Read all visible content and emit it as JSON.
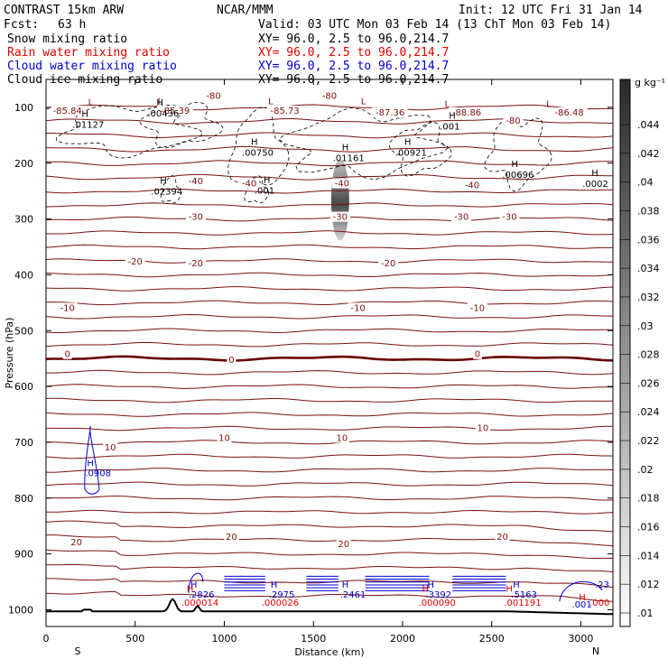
{
  "header": {
    "model": "CONTRAST 15km ARW",
    "org": "NCAR/MMM",
    "init": "Init: 12 UTC Fri 31 Jan 14",
    "fcst_label": "Fcst:",
    "fcst_value": "63 h",
    "valid": "Valid: 03 UTC Mon 03 Feb 14 (13 ChT Mon 03 Feb 14)",
    "fields": [
      {
        "name": "Snow mixing ratio",
        "xy": "XY=  96.0,  2.5 to  96.0,214.7",
        "color": "#000000"
      },
      {
        "name": "Rain water mixing ratio",
        "xy": "XY=  96.0,  2.5 to  96.0,214.7",
        "color": "#e00000"
      },
      {
        "name": "Cloud water mixing ratio",
        "xy": "XY=  96.0,  2.5 to  96.0,214.7",
        "color": "#0000cc"
      },
      {
        "name": "Cloud ice mixing ratio",
        "xy": "XY=  96.0,  2.5 to  96.0,214.7",
        "color": "#000000"
      }
    ]
  },
  "chart_data": {
    "type": "contour cross-section",
    "xlabel": "Distance (km)",
    "ylabel": "Pressure (hPa)",
    "x_ticks": [
      0,
      500,
      1000,
      1500,
      2000,
      2500,
      3000
    ],
    "xlim": [
      0,
      3180
    ],
    "y_ticks": [
      100,
      200,
      300,
      400,
      500,
      600,
      700,
      800,
      900,
      1000
    ],
    "ylim": [
      50,
      1030
    ],
    "x_end_labels": {
      "left": "S",
      "right": "N"
    },
    "colorbar": {
      "unit": "g kg⁻¹",
      "ticks": [
        ".01",
        ".012",
        ".014",
        ".016",
        ".018",
        ".02",
        ".022",
        ".024",
        ".026",
        ".028",
        ".03",
        ".032",
        ".034",
        ".036",
        ".038",
        ".04",
        ".042",
        ".044"
      ]
    },
    "temperature_contours": {
      "color": "#7b1010",
      "zero_color": "#6a0000",
      "labels": [
        {
          "t": "-85.84",
          "x": 120,
          "p": 110
        },
        {
          "t": "-85.39",
          "x": 725,
          "p": 110
        },
        {
          "t": "-85.73",
          "x": 1340,
          "p": 110
        },
        {
          "t": "-87.36",
          "x": 1930,
          "p": 113
        },
        {
          "t": "-88.86",
          "x": 2360,
          "p": 113
        },
        {
          "t": "-86.48",
          "x": 2935,
          "p": 113
        },
        {
          "t": "-80",
          "x": 940,
          "p": 83
        },
        {
          "t": "-80",
          "x": 1590,
          "p": 83
        },
        {
          "t": "-80",
          "x": 2620,
          "p": 128
        },
        {
          "t": "-40",
          "x": 840,
          "p": 236
        },
        {
          "t": "-40",
          "x": 1140,
          "p": 240
        },
        {
          "t": "-40",
          "x": 1660,
          "p": 240
        },
        {
          "t": "-40",
          "x": 2390,
          "p": 243
        },
        {
          "t": "-30",
          "x": 840,
          "p": 300
        },
        {
          "t": "-30",
          "x": 1650,
          "p": 300
        },
        {
          "t": "-30",
          "x": 2330,
          "p": 300
        },
        {
          "t": "-30",
          "x": 2600,
          "p": 300
        },
        {
          "t": "-20",
          "x": 500,
          "p": 380
        },
        {
          "t": "-20",
          "x": 840,
          "p": 383
        },
        {
          "t": "-20",
          "x": 1920,
          "p": 383
        },
        {
          "t": "-10",
          "x": 120,
          "p": 463
        },
        {
          "t": "-10",
          "x": 1750,
          "p": 463
        },
        {
          "t": "-10",
          "x": 2420,
          "p": 463
        },
        {
          "t": "0",
          "x": 120,
          "p": 546
        },
        {
          "t": "0",
          "x": 1040,
          "p": 556
        },
        {
          "t": "0",
          "x": 2420,
          "p": 546
        },
        {
          "t": "10",
          "x": 360,
          "p": 713
        },
        {
          "t": "10",
          "x": 1000,
          "p": 696
        },
        {
          "t": "10",
          "x": 1660,
          "p": 696
        },
        {
          "t": "10",
          "x": 2450,
          "p": 678
        },
        {
          "t": "20",
          "x": 170,
          "p": 883
        },
        {
          "t": "20",
          "x": 1040,
          "p": 873
        },
        {
          "t": "20",
          "x": 1670,
          "p": 886
        },
        {
          "t": "20",
          "x": 2560,
          "p": 873
        }
      ]
    },
    "ice_extrema": [
      {
        "h": "H",
        "v": ".01127",
        "x": 240,
        "p": 130
      },
      {
        "h": "H",
        "v": ".00436",
        "x": 660,
        "p": 110
      },
      {
        "h": "H",
        "v": ".00750",
        "x": 1190,
        "p": 180
      },
      {
        "h": "H",
        "v": ".001",
        "x": 1260,
        "p": 248
      },
      {
        "h": "H",
        "v": ".02394",
        "x": 680,
        "p": 250
      },
      {
        "h": "H",
        "v": ".01161",
        "x": 1700,
        "p": 190
      },
      {
        "h": "H",
        "v": ".00921",
        "x": 2050,
        "p": 180
      },
      {
        "h": "H",
        "v": ".001",
        "x": 2300,
        "p": 133
      },
      {
        "h": "H",
        "v": ".00696",
        "x": 2650,
        "p": 220
      },
      {
        "h": "H",
        "v": ".0002",
        "x": 3100,
        "p": 236
      }
    ],
    "cloud_water_extrema": [
      {
        "h": "H",
        "v": ".0908",
        "x": 270,
        "p": 753
      },
      {
        "h": "H",
        "v": ".2826",
        "x": 850,
        "p": 970
      },
      {
        "h": "H",
        "v": ".2975",
        "x": 1300,
        "p": 970
      },
      {
        "h": "H",
        "v": ".2461",
        "x": 1700,
        "p": 970
      },
      {
        "h": "H",
        "v": ".3392",
        "x": 2180,
        "p": 970
      },
      {
        "h": "H",
        "v": ".5163",
        "x": 2660,
        "p": 970
      },
      {
        "h": "",
        "v": ".001",
        "x": 3000,
        "p": 988
      },
      {
        "h": "",
        "v": ".23",
        "x": 3130,
        "p": 952
      }
    ],
    "rain_extrema": [
      {
        "v": ".000014",
        "x": 850,
        "p": 985
      },
      {
        "v": ".000026",
        "x": 1300,
        "p": 985
      },
      {
        "v": ".000090",
        "x": 2180,
        "p": 985
      },
      {
        "v": ".001191",
        "x": 2660,
        "p": 985
      },
      {
        "v": ".000",
        "x": 3140,
        "p": 985
      }
    ],
    "rain_extrema_h": [
      {
        "h": "H",
        "x": 860,
        "p": 960
      },
      {
        "h": "H",
        "x": 2180,
        "p": 960
      },
      {
        "h": "H",
        "x": 2650,
        "p": 960
      },
      {
        "h": "H",
        "x": 3060,
        "p": 975
      }
    ],
    "cold_trough_labels": [
      {
        "h": "L",
        "x": 250,
        "p": 90
      },
      {
        "h": "L",
        "x": 640,
        "p": 88
      },
      {
        "h": "L",
        "x": 1260,
        "p": 88
      },
      {
        "h": "L",
        "x": 1780,
        "p": 88
      },
      {
        "h": "L",
        "x": 2250,
        "p": 93
      },
      {
        "h": "L",
        "x": 2820,
        "p": 93
      }
    ],
    "snow_max": {
      "x": 1650,
      "p": 290
    }
  }
}
